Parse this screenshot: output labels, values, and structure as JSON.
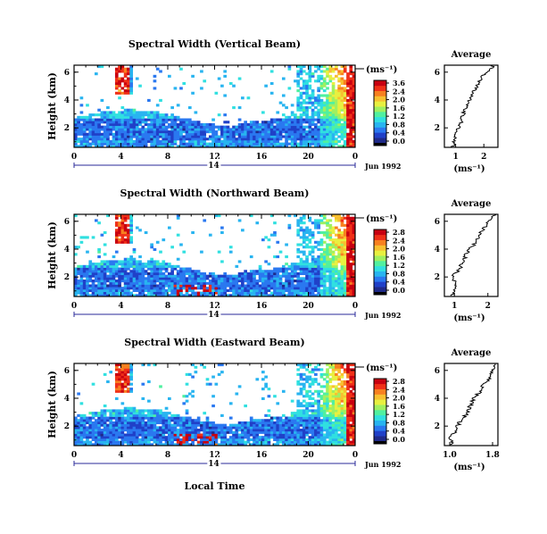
{
  "figure": {
    "xlabel_bottom": "Local Time",
    "date_label": "Jun 1992",
    "day_label": "14",
    "avg_title": "Average",
    "unit_label": "(ms⁻¹)",
    "ylabel": "Height (km)"
  },
  "colors": {
    "palette": [
      "#1f2a8a",
      "#2040c8",
      "#2a78f0",
      "#28b4f0",
      "#30e0e0",
      "#50f0a0",
      "#a0f060",
      "#e8f040",
      "#f8c030",
      "#f88020",
      "#f03018",
      "#c80010"
    ],
    "frame": "#000000",
    "day_line": "#2a2a9a"
  },
  "chart_data": [
    {
      "type": "heatmap",
      "title": "Spectral Width (Vertical Beam)",
      "xlabel": "",
      "ylabel": "Height (km)",
      "xlim": [
        0,
        24
      ],
      "ylim": [
        0.6,
        6.5
      ],
      "x_ticks": [
        "0",
        "4",
        "8",
        "12",
        "16",
        "20",
        "0"
      ],
      "y_ticks": [
        "2",
        "4",
        "6"
      ],
      "colorbar": {
        "ticks": [
          "3.6",
          "2.4",
          "2.0",
          "1.6",
          "1.2",
          "0.8",
          "0.4",
          "0.0"
        ],
        "unit": "(ms⁻¹)"
      },
      "average_profile": {
        "title": "Average",
        "xlabel": "(ms⁻¹)",
        "x_ticks": [
          "1",
          "2"
        ],
        "xlim": [
          0.6,
          2.5
        ],
        "heights_km": [
          0.8,
          1.2,
          1.6,
          2.0,
          2.4,
          2.8,
          3.2,
          3.6,
          4.0,
          4.4,
          4.8,
          5.2,
          5.6,
          6.0,
          6.4
        ],
        "values": [
          0.9,
          1.0,
          0.95,
          1.1,
          1.2,
          1.25,
          1.3,
          1.4,
          1.5,
          1.55,
          1.7,
          1.8,
          1.9,
          2.1,
          2.3
        ]
      }
    },
    {
      "type": "heatmap",
      "title": "Spectral Width (Northward Beam)",
      "xlabel": "",
      "ylabel": "Height (km)",
      "xlim": [
        0,
        24
      ],
      "ylim": [
        0.6,
        6.5
      ],
      "x_ticks": [
        "0",
        "4",
        "8",
        "12",
        "16",
        "20",
        "0"
      ],
      "y_ticks": [
        "2",
        "4",
        "6"
      ],
      "colorbar": {
        "ticks": [
          "2.8",
          "2.4",
          "2.0",
          "1.6",
          "1.2",
          "0.8",
          "0.4",
          "0.0"
        ],
        "unit": "(ms⁻¹)"
      },
      "average_profile": {
        "title": "Average",
        "xlabel": "(ms⁻¹)",
        "x_ticks": [
          "1",
          "2"
        ],
        "xlim": [
          0.7,
          2.3
        ],
        "heights_km": [
          0.8,
          1.2,
          1.6,
          2.0,
          2.4,
          2.8,
          3.2,
          3.6,
          4.0,
          4.4,
          4.8,
          5.2,
          5.6,
          6.0,
          6.4
        ],
        "values": [
          0.95,
          1.0,
          1.05,
          0.9,
          1.1,
          1.2,
          1.3,
          1.35,
          1.45,
          1.6,
          1.7,
          1.8,
          1.9,
          2.0,
          2.2
        ]
      }
    },
    {
      "type": "heatmap",
      "title": "Spectral Width (Eastward Beam)",
      "xlabel": "Local Time",
      "ylabel": "Height (km)",
      "xlim": [
        0,
        24
      ],
      "ylim": [
        0.6,
        6.5
      ],
      "x_ticks": [
        "0",
        "4",
        "8",
        "12",
        "16",
        "20",
        "0"
      ],
      "y_ticks": [
        "2",
        "4",
        "6"
      ],
      "colorbar": {
        "ticks": [
          "2.8",
          "2.4",
          "2.0",
          "1.6",
          "1.2",
          "0.8",
          "0.4",
          "0.0"
        ],
        "unit": "(ms⁻¹)"
      },
      "average_profile": {
        "title": "Average",
        "xlabel": "(ms⁻¹)",
        "x_ticks": [
          "1.0",
          "1.8"
        ],
        "xlim": [
          0.9,
          1.9
        ],
        "heights_km": [
          0.8,
          1.2,
          1.6,
          2.0,
          2.4,
          2.8,
          3.2,
          3.6,
          4.0,
          4.4,
          4.8,
          5.2,
          5.6,
          6.0,
          6.4
        ],
        "values": [
          1.05,
          1.0,
          1.1,
          1.15,
          1.2,
          1.3,
          1.35,
          1.4,
          1.45,
          1.55,
          1.6,
          1.7,
          1.75,
          1.8,
          1.85
        ]
      }
    }
  ]
}
